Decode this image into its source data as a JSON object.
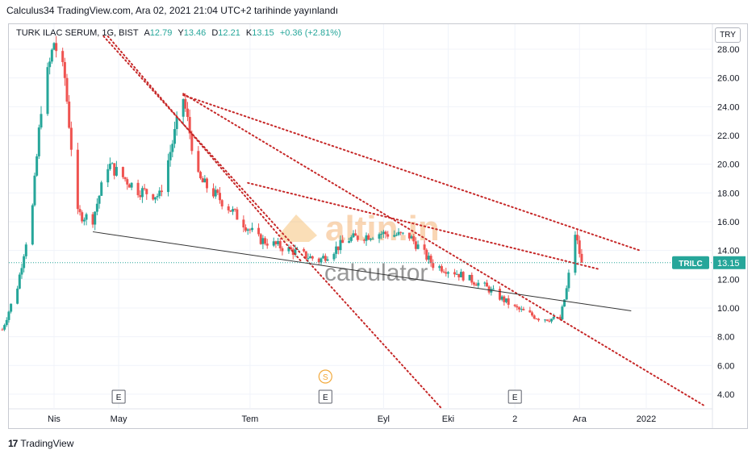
{
  "header": {
    "publish_line": "Calculus34 TradingView.com, Ara 02, 2021 21:04 UTC+2 tarihinde yayınlandı"
  },
  "legend": {
    "symbol": "TURK ILAC SERUM, 1G, BIST",
    "items": [
      {
        "key": "A",
        "value": "12.79"
      },
      {
        "key": "Y",
        "value": "13.46"
      },
      {
        "key": "D",
        "value": "12.21"
      },
      {
        "key": "K",
        "value": "13.15"
      }
    ],
    "change": "+0.36 (+2.81%)"
  },
  "currency": "TRY",
  "footer": {
    "brand": "TradingView",
    "logo": "17"
  },
  "watermark": {
    "top": "altin.in",
    "bottom": "calculator"
  },
  "colors": {
    "up": "#26a69a",
    "down": "#ef5350",
    "trend_red": "#c62828",
    "trend_gray": "#333333",
    "price_line": "#26a69a"
  },
  "chart_data": {
    "type": "candlestick",
    "ylim": [
      3,
      29
    ],
    "y_ticks": [
      "28.00",
      "26.00",
      "24.00",
      "22.00",
      "20.00",
      "18.00",
      "16.00",
      "14.00",
      "12.00",
      "10.00",
      "8.00",
      "6.00",
      "4.00"
    ],
    "x_ticks": [
      "Nis",
      "May",
      "Tem",
      "Eyl",
      "Eki",
      "2",
      "Ara",
      "2022"
    ],
    "last_price": {
      "label": "TRILC",
      "value": "13.15"
    },
    "events": [
      {
        "label": "E",
        "date": "2021-05-01"
      },
      {
        "label": "E",
        "date": "2021-08-05"
      },
      {
        "label": "E",
        "date": "2021-11-01"
      },
      {
        "label": "S",
        "date": "2021-08-05"
      }
    ],
    "anchors": [
      {
        "date": "2021-03-08",
        "close": 8.5
      },
      {
        "date": "2021-03-15",
        "close": 11.5
      },
      {
        "date": "2021-03-22",
        "close": 17.0
      },
      {
        "date": "2021-03-26",
        "close": 24.0
      },
      {
        "date": "2021-04-01",
        "close": 28.5
      },
      {
        "date": "2021-04-06",
        "close": 26.0
      },
      {
        "date": "2021-04-12",
        "close": 16.5
      },
      {
        "date": "2021-04-19",
        "close": 16.2
      },
      {
        "date": "2021-04-26",
        "close": 20.0
      },
      {
        "date": "2021-05-10",
        "close": 18.2
      },
      {
        "date": "2021-05-20",
        "close": 17.8
      },
      {
        "date": "2021-05-31",
        "close": 24.6
      },
      {
        "date": "2021-06-07",
        "close": 19.0
      },
      {
        "date": "2021-06-21",
        "close": 17.0
      },
      {
        "date": "2021-07-05",
        "close": 14.8
      },
      {
        "date": "2021-07-20",
        "close": 14.0
      },
      {
        "date": "2021-08-02",
        "close": 13.3
      },
      {
        "date": "2021-08-16",
        "close": 14.8
      },
      {
        "date": "2021-08-30",
        "close": 15.2
      },
      {
        "date": "2021-09-13",
        "close": 15.0
      },
      {
        "date": "2021-09-24",
        "close": 13.0
      },
      {
        "date": "2021-10-04",
        "close": 12.5
      },
      {
        "date": "2021-10-18",
        "close": 11.5
      },
      {
        "date": "2021-11-01",
        "close": 10.0
      },
      {
        "date": "2021-11-12",
        "close": 9.3
      },
      {
        "date": "2021-11-22",
        "close": 9.2
      },
      {
        "date": "2021-11-25",
        "close": 11.3
      },
      {
        "date": "2021-11-29",
        "close": 15.2
      },
      {
        "date": "2021-12-02",
        "close": 13.15
      }
    ],
    "trendlines": [
      {
        "color": "red",
        "style": "dotted",
        "from": {
          "date": "2021-04-24",
          "price": 28.9
        },
        "to": {
          "date": "2021-09-28",
          "price": 3.0
        }
      },
      {
        "color": "red",
        "style": "dotted",
        "from": {
          "date": "2021-05-31",
          "price": 24.8
        },
        "to": {
          "date": "2021-12-29",
          "price": 14.0
        }
      },
      {
        "color": "red",
        "style": "dotted",
        "from": {
          "date": "2021-05-31",
          "price": 24.9
        },
        "to": {
          "date": "2022-01-28",
          "price": 3.2
        }
      },
      {
        "color": "red",
        "style": "dotted",
        "from": {
          "date": "2021-06-30",
          "price": 18.7
        },
        "to": {
          "date": "2021-12-10",
          "price": 12.7
        }
      },
      {
        "color": "red",
        "style": "dotted",
        "from": {
          "date": "2021-04-26",
          "price": 28.9
        },
        "to": {
          "date": "2021-07-25",
          "price": 13.2
        }
      },
      {
        "color": "gray",
        "style": "solid",
        "from": {
          "date": "2021-04-19",
          "price": 15.3
        },
        "to": {
          "date": "2021-12-25",
          "price": 9.8
        }
      }
    ]
  }
}
